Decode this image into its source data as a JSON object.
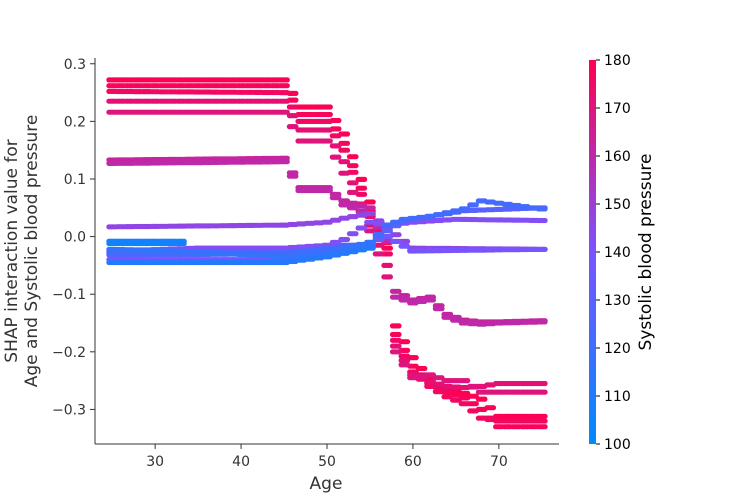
{
  "chart_data": {
    "type": "scatter",
    "xlabel": "Age",
    "ylabel_lines": [
      "SHAP interaction value for",
      "Age and Systolic blood pressure"
    ],
    "xlim": [
      23,
      77
    ],
    "ylim": [
      -0.36,
      0.31
    ],
    "xticks": [
      30,
      40,
      50,
      60,
      70
    ],
    "yticks": [
      -0.3,
      -0.2,
      -0.1,
      0.0,
      0.1,
      0.2,
      0.3
    ],
    "ytick_labels": [
      "−0.3",
      "−0.2",
      "−0.1",
      "0.0",
      "0.1",
      "0.2",
      "0.3"
    ],
    "grid": false,
    "colorbar": {
      "label": "Systolic blood pressure",
      "min": 100,
      "max": 180,
      "ticks": [
        100,
        110,
        120,
        130,
        140,
        150,
        160,
        170,
        180
      ],
      "color_low": "#008afb",
      "color_mid": "#7c52ff",
      "color_high": "#ff0052"
    },
    "bands": [
      {
        "bp": 180,
        "pts": [
          [
            25,
            0.272
          ],
          [
            45,
            0.272
          ],
          [
            47,
            0.225
          ],
          [
            50,
            0.225
          ],
          [
            52,
            0.178
          ],
          [
            55,
            0.06
          ],
          [
            57,
            -0.01
          ],
          [
            58,
            -0.155
          ],
          [
            60,
            -0.21
          ],
          [
            62,
            -0.248
          ],
          [
            64,
            -0.266
          ],
          [
            66,
            -0.272
          ],
          [
            68,
            -0.282
          ],
          [
            70,
            -0.312
          ],
          [
            75,
            -0.312
          ]
        ]
      },
      {
        "bp": 178,
        "pts": [
          [
            25,
            0.262
          ],
          [
            45,
            0.262
          ],
          [
            47,
            0.212
          ],
          [
            50,
            0.212
          ],
          [
            52,
            0.162
          ],
          [
            55,
            0.045
          ],
          [
            57,
            -0.02
          ],
          [
            58,
            -0.17
          ],
          [
            60,
            -0.225
          ],
          [
            62,
            -0.255
          ],
          [
            64,
            -0.27
          ],
          [
            66,
            -0.28
          ],
          [
            68,
            -0.3
          ],
          [
            70,
            -0.33
          ],
          [
            75,
            -0.33
          ]
        ]
      },
      {
        "bp": 176,
        "pts": [
          [
            25,
            0.252
          ],
          [
            45,
            0.25
          ],
          [
            47,
            0.2
          ],
          [
            50,
            0.2
          ],
          [
            52,
            0.15
          ],
          [
            55,
            0.035
          ],
          [
            57,
            -0.03
          ],
          [
            58,
            -0.18
          ],
          [
            60,
            -0.235
          ],
          [
            62,
            -0.26
          ],
          [
            64,
            -0.278
          ],
          [
            66,
            -0.29
          ],
          [
            68,
            -0.315
          ],
          [
            70,
            -0.32
          ],
          [
            75,
            -0.32
          ]
        ]
      },
      {
        "bp": 172,
        "pts": [
          [
            25,
            0.235
          ],
          [
            45,
            0.235
          ],
          [
            47,
            0.185
          ],
          [
            50,
            0.185
          ],
          [
            52,
            0.13
          ],
          [
            55,
            0.02
          ],
          [
            57,
            -0.05
          ],
          [
            58,
            -0.19
          ],
          [
            60,
            -0.24
          ],
          [
            62,
            -0.252
          ],
          [
            64,
            -0.26
          ],
          [
            66,
            -0.262
          ],
          [
            68,
            -0.26
          ],
          [
            70,
            -0.255
          ],
          [
            75,
            -0.255
          ]
        ]
      },
      {
        "bp": 170,
        "pts": [
          [
            25,
            0.216
          ],
          [
            45,
            0.216
          ],
          [
            47,
            0.166
          ],
          [
            50,
            0.166
          ],
          [
            52,
            0.11
          ],
          [
            55,
            0.01
          ],
          [
            57,
            -0.07
          ],
          [
            58,
            -0.2
          ],
          [
            60,
            -0.245
          ],
          [
            62,
            -0.24
          ],
          [
            64,
            -0.25
          ],
          [
            66,
            -0.25
          ],
          [
            68,
            -0.27
          ],
          [
            70,
            -0.27
          ],
          [
            75,
            -0.27
          ]
        ]
      },
      {
        "bp": 162,
        "pts": [
          [
            25,
            0.133
          ],
          [
            45,
            0.136
          ],
          [
            47,
            0.085
          ],
          [
            50,
            0.085
          ],
          [
            52,
            0.062
          ],
          [
            55,
            0.05
          ],
          [
            57,
            0.0
          ],
          [
            58,
            -0.095
          ],
          [
            60,
            -0.11
          ],
          [
            62,
            -0.105
          ],
          [
            64,
            -0.135
          ],
          [
            66,
            -0.145
          ],
          [
            68,
            -0.148
          ],
          [
            70,
            -0.148
          ],
          [
            75,
            -0.146
          ]
        ]
      },
      {
        "bp": 160,
        "pts": [
          [
            25,
            0.127
          ],
          [
            45,
            0.13
          ],
          [
            47,
            0.08
          ],
          [
            50,
            0.08
          ],
          [
            52,
            0.055
          ],
          [
            55,
            0.04
          ],
          [
            57,
            -0.008
          ],
          [
            58,
            -0.105
          ],
          [
            60,
            -0.115
          ],
          [
            62,
            -0.11
          ],
          [
            64,
            -0.14
          ],
          [
            66,
            -0.15
          ],
          [
            68,
            -0.152
          ],
          [
            70,
            -0.15
          ],
          [
            75,
            -0.148
          ]
        ]
      },
      {
        "bp": 146,
        "pts": [
          [
            25,
            0.017
          ],
          [
            45,
            0.02
          ],
          [
            50,
            0.025
          ],
          [
            52,
            0.032
          ],
          [
            55,
            0.04
          ],
          [
            57,
            0.015
          ],
          [
            60,
            -0.02
          ],
          [
            75,
            -0.022
          ]
        ]
      },
      {
        "bp": 142,
        "pts": [
          [
            25,
            -0.025
          ],
          [
            35,
            -0.02
          ],
          [
            45,
            -0.02
          ],
          [
            50,
            -0.015
          ],
          [
            52,
            -0.005
          ],
          [
            55,
            0.025
          ],
          [
            57,
            0.02
          ],
          [
            60,
            0.025
          ],
          [
            65,
            0.03
          ],
          [
            75,
            0.028
          ]
        ]
      },
      {
        "bp": 138,
        "pts": [
          [
            25,
            -0.04
          ],
          [
            45,
            -0.04
          ],
          [
            50,
            -0.03
          ],
          [
            55,
            -0.01
          ],
          [
            57,
            0.0
          ],
          [
            60,
            -0.025
          ],
          [
            75,
            -0.022
          ]
        ]
      },
      {
        "bp": 128,
        "pts": [
          [
            25,
            -0.032
          ],
          [
            45,
            -0.03
          ],
          [
            50,
            -0.025
          ],
          [
            52,
            -0.015
          ],
          [
            55,
            -0.015
          ],
          [
            57,
            0.01
          ],
          [
            59,
            0.028
          ],
          [
            62,
            0.035
          ],
          [
            64,
            0.04
          ],
          [
            66,
            0.045
          ],
          [
            75,
            0.05
          ]
        ]
      },
      {
        "bp": 122,
        "pts": [
          [
            25,
            -0.028
          ],
          [
            45,
            -0.028
          ],
          [
            50,
            -0.02
          ],
          [
            55,
            -0.012
          ],
          [
            57,
            0.02
          ],
          [
            59,
            0.03
          ],
          [
            62,
            0.035
          ],
          [
            66,
            0.048
          ],
          [
            68,
            0.062
          ],
          [
            70,
            0.058
          ],
          [
            75,
            0.048
          ]
        ]
      },
      {
        "bp": 116,
        "pts": [
          [
            25,
            -0.022
          ],
          [
            33,
            -0.025
          ],
          [
            45,
            -0.035
          ],
          [
            50,
            -0.03
          ],
          [
            55,
            -0.01
          ]
        ]
      },
      {
        "bp": 112,
        "pts": [
          [
            25,
            -0.045
          ],
          [
            45,
            -0.045
          ],
          [
            50,
            -0.035
          ],
          [
            55,
            -0.02
          ]
        ]
      },
      {
        "bp": 108,
        "pts": [
          [
            25,
            -0.008
          ],
          [
            33,
            -0.008
          ]
        ]
      },
      {
        "bp": 104,
        "pts": [
          [
            25,
            -0.012
          ],
          [
            33,
            -0.012
          ]
        ]
      }
    ]
  }
}
